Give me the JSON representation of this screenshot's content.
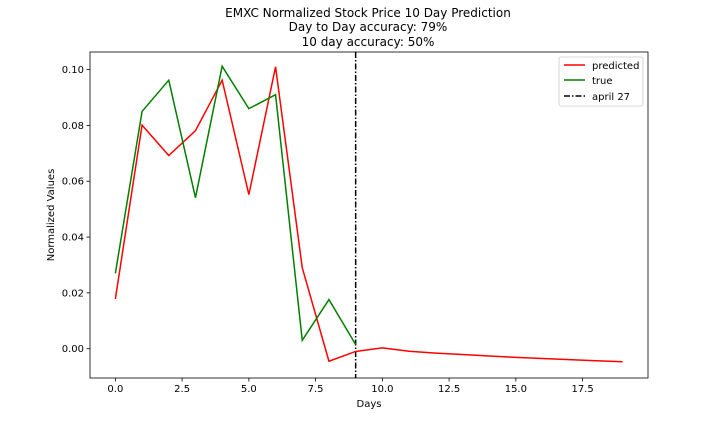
{
  "chart_data": {
    "type": "line",
    "title": [
      "EMXC Normalized Stock Price 10 Day Prediction",
      "Day to Day accuracy: 79%",
      "10 day accuracy: 50%"
    ],
    "xlabel": "Days",
    "ylabel": "Normalized Values",
    "xlim": [
      -0.95,
      19.95
    ],
    "ylim": [
      -0.0105,
      0.1063
    ],
    "xticks": [
      0.0,
      2.5,
      5.0,
      7.5,
      10.0,
      12.5,
      15.0,
      17.5
    ],
    "xtick_labels": [
      "0.0",
      "2.5",
      "5.0",
      "7.5",
      "10.0",
      "12.5",
      "15.0",
      "17.5"
    ],
    "yticks": [
      0.0,
      0.02,
      0.04,
      0.06,
      0.08,
      0.1
    ],
    "ytick_labels": [
      "0.00",
      "0.02",
      "0.04",
      "0.06",
      "0.08",
      "0.10"
    ],
    "grid": false,
    "legend_position": "top-right",
    "series": [
      {
        "name": "predicted",
        "color": "#ff0000",
        "x": [
          0,
          1,
          2,
          3,
          4,
          5,
          6,
          7,
          8,
          9,
          10,
          11,
          12,
          13,
          14,
          15,
          16,
          17,
          18,
          19
        ],
        "values": [
          0.0178,
          0.0801,
          0.0692,
          0.0781,
          0.0962,
          0.0552,
          0.101,
          0.029,
          -0.0045,
          -0.001,
          0.0003,
          -0.0009,
          -0.0016,
          -0.0021,
          -0.0026,
          -0.0031,
          -0.0035,
          -0.0039,
          -0.0043,
          -0.0047
        ]
      },
      {
        "name": "true",
        "color": "#008000",
        "x": [
          0,
          1,
          2,
          3,
          4,
          5,
          6,
          7,
          8,
          9
        ],
        "values": [
          0.027,
          0.085,
          0.0962,
          0.0541,
          0.1012,
          0.086,
          0.091,
          0.003,
          0.0176,
          0.0015
        ]
      }
    ],
    "vline": {
      "name": "april 27",
      "x": 9,
      "color": "#000000"
    }
  }
}
